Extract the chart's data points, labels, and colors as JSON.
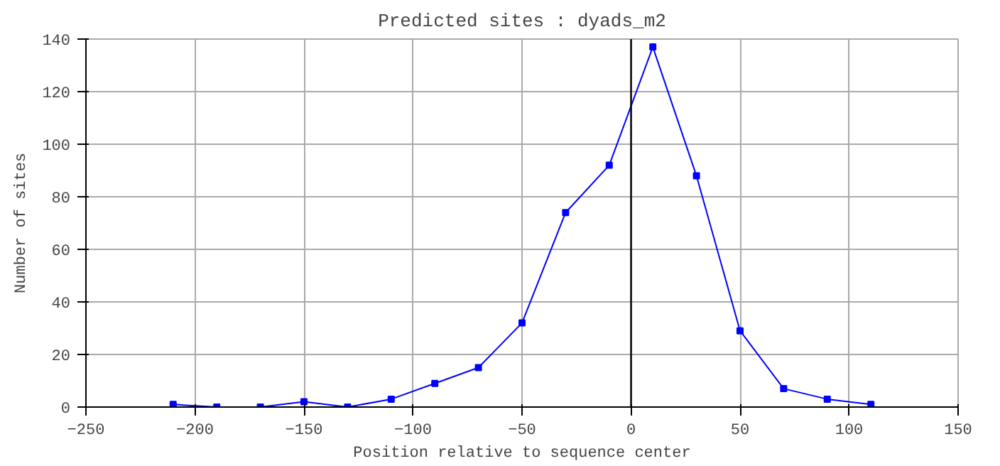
{
  "chart_data": {
    "type": "line",
    "title": "Predicted sites : dyads_m2",
    "xlabel": "Position relative to sequence center",
    "ylabel": "Number of sites",
    "x": [
      -210,
      -190,
      -170,
      -150,
      -130,
      -110,
      -90,
      -70,
      -50,
      -30,
      -10,
      10,
      30,
      50,
      70,
      90,
      110
    ],
    "series": [
      {
        "color": "#0000ff",
        "values": [
          1,
          0,
          0,
          2,
          0,
          3,
          9,
          15,
          32,
          74,
          92,
          137,
          88,
          29,
          7,
          3,
          1
        ]
      }
    ],
    "xlim": [
      -250,
      150
    ],
    "xticks": [
      -250,
      -200,
      -150,
      -100,
      -50,
      0,
      50,
      100,
      150
    ],
    "ylim": [
      0,
      140
    ],
    "yticks": [
      0,
      20,
      40,
      60,
      80,
      100,
      120,
      140
    ],
    "ref_lines": [
      {
        "axis": "x",
        "value": 0,
        "color": "#000000"
      }
    ],
    "grid": true,
    "marker": "square",
    "line_style": "solid"
  }
}
